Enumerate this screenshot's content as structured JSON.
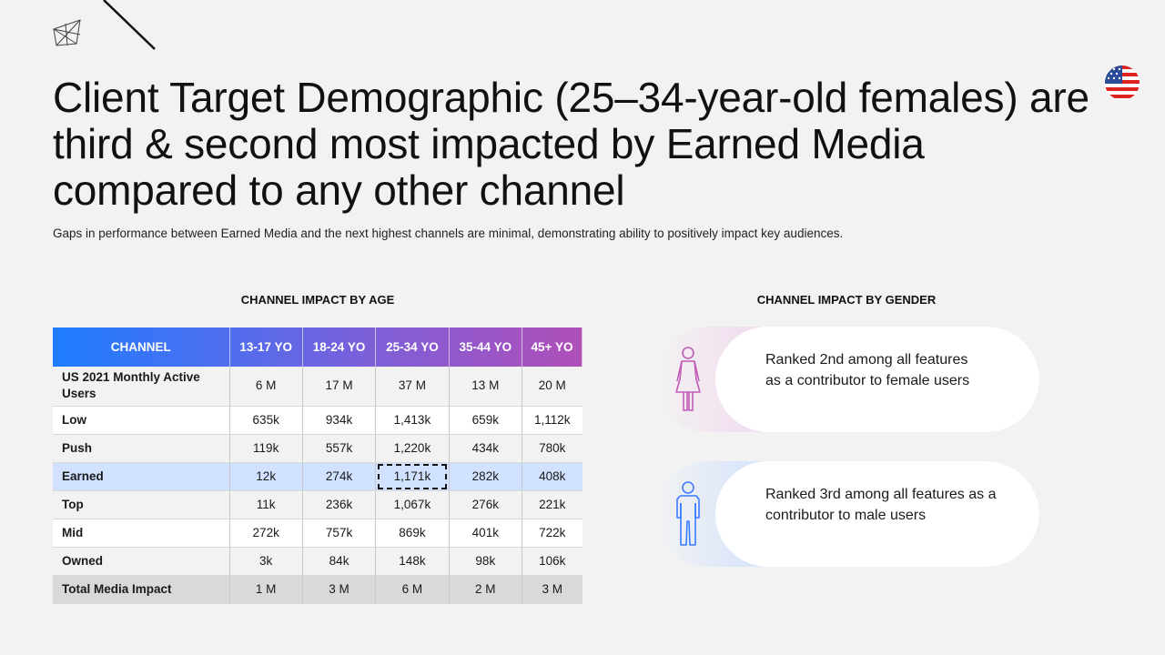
{
  "title": "Client Target Demographic (25–34-year-old females) are third & second most impacted by Earned Media compared to any other channel",
  "subtitle": "Gaps in performance between Earned Media and the next highest channels are minimal, demonstrating ability to positively impact key audiences.",
  "age_section": {
    "label": "CHANNEL IMPACT BY AGE",
    "headers": [
      "CHANNEL",
      "13-17 YO",
      "18-24 YO",
      "25-34 YO",
      "35-44 YO",
      "45+ YO"
    ],
    "rows": [
      {
        "channel": "US 2021 Monthly Active Users",
        "values": [
          "6 M",
          "17 M",
          "37 M",
          "13 M",
          "20 M"
        ]
      },
      {
        "channel": "Low",
        "values": [
          "635k",
          "934k",
          "1,413k",
          "659k",
          "1,112k"
        ]
      },
      {
        "channel": "Push",
        "values": [
          "119k",
          "557k",
          "1,220k",
          "434k",
          "780k"
        ]
      },
      {
        "channel": "Earned",
        "values": [
          "12k",
          "274k",
          "1,171k",
          "282k",
          "408k"
        ]
      },
      {
        "channel": "Top",
        "values": [
          "11k",
          "236k",
          "1,067k",
          "276k",
          "221k"
        ]
      },
      {
        "channel": "Mid",
        "values": [
          "272k",
          "757k",
          "869k",
          "401k",
          "722k"
        ]
      },
      {
        "channel": "Owned",
        "values": [
          "3k",
          "84k",
          "148k",
          "98k",
          "106k"
        ]
      },
      {
        "channel": "Total Media Impact",
        "values": [
          "1 M",
          "3 M",
          "6 M",
          "2 M",
          "3 M"
        ]
      }
    ]
  },
  "gender_section": {
    "label": "CHANNEL IMPACT BY GENDER",
    "female_text": "Ranked 2nd among all features as a contributor to female users",
    "male_text": "Ranked 3rd among all features as a contributor to male users"
  },
  "colors": {
    "header_gradient_start": "#1f7dff",
    "header_gradient_end": "#b04fb8",
    "earned_row": "#d0e2ff",
    "total_row": "#d9d9d9",
    "female_icon": "#c25cb8",
    "male_icon": "#3b7bff"
  },
  "icons": {
    "logo": "geometric-logo-icon",
    "flag": "us-flag-icon",
    "female": "female-person-icon",
    "male": "male-person-icon"
  }
}
